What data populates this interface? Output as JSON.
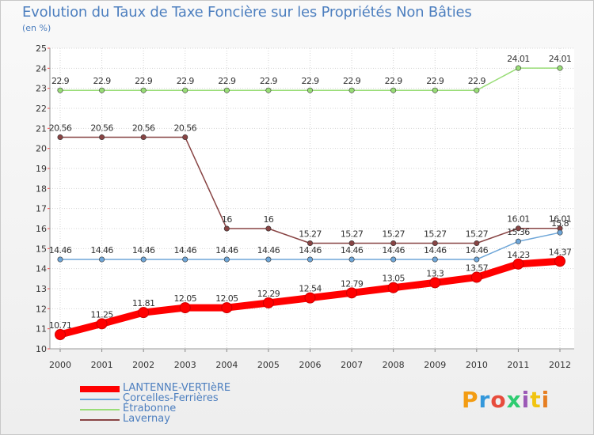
{
  "chart_data": {
    "type": "line",
    "title": "Evolution du Taux de Taxe Foncière sur les Propriétés Non Bâties",
    "ylabel": "(en %)",
    "xlabel": "",
    "ylim": [
      10,
      25
    ],
    "yticks": [
      "10",
      "11",
      "12",
      "13",
      "14",
      "15",
      "16",
      "17",
      "18",
      "19",
      "20",
      "21",
      "22",
      "23",
      "24",
      "25"
    ],
    "categories": [
      "2000",
      "2001",
      "2002",
      "2003",
      "2004",
      "2005",
      "2006",
      "2007",
      "2008",
      "2009",
      "2010",
      "2011",
      "2012"
    ],
    "grid": true,
    "series": [
      {
        "name": "LANTENNE-VERTIèRE",
        "color": "#ff0000",
        "values": [
          10.71,
          11.25,
          11.81,
          12.05,
          12.05,
          12.29,
          12.54,
          12.79,
          13.05,
          13.3,
          13.57,
          14.23,
          14.37
        ],
        "labels": [
          "10.71",
          "11.25",
          "11.81",
          "12.05",
          "12.05",
          "12.29",
          "12.54",
          "12.79",
          "13.05",
          "13.3",
          "13.57",
          "14.23",
          "14.37"
        ]
      },
      {
        "name": "Corcelles-Ferrières",
        "color": "#6ea6d8",
        "values": [
          14.46,
          14.46,
          14.46,
          14.46,
          14.46,
          14.46,
          14.46,
          14.46,
          14.46,
          14.46,
          14.46,
          15.36,
          15.8
        ],
        "labels": [
          "14.46",
          "14.46",
          "14.46",
          "14.46",
          "14.46",
          "14.46",
          "14.46",
          "14.46",
          "14.46",
          "14.46",
          "14.46",
          "15.36",
          "15.8"
        ]
      },
      {
        "name": "Étrabonne",
        "color": "#99dd77",
        "values": [
          22.9,
          22.9,
          22.9,
          22.9,
          22.9,
          22.9,
          22.9,
          22.9,
          22.9,
          22.9,
          22.9,
          24.01,
          24.01
        ],
        "labels": [
          "22.9",
          "22.9",
          "22.9",
          "22.9",
          "22.9",
          "22.9",
          "22.9",
          "22.9",
          "22.9",
          "22.9",
          "22.9",
          "24.01",
          "24.01"
        ]
      },
      {
        "name": "Lavernay",
        "color": "#884444",
        "values": [
          20.56,
          20.56,
          20.56,
          20.56,
          16,
          16,
          15.27,
          15.27,
          15.27,
          15.27,
          15.27,
          16.01,
          16.01
        ],
        "labels": [
          "20.56",
          "20.56",
          "20.56",
          "20.56",
          "16",
          "16",
          "15.27",
          "15.27",
          "15.27",
          "15.27",
          "15.27",
          "16.01",
          "16.01"
        ]
      }
    ],
    "legend": "bottom-left"
  },
  "logo": {
    "text": "Proxiti",
    "colors": [
      "#f39c12",
      "#3498db",
      "#e74c3c",
      "#2ecc71",
      "#9b59b6",
      "#f1c40f",
      "#e67e22"
    ]
  }
}
